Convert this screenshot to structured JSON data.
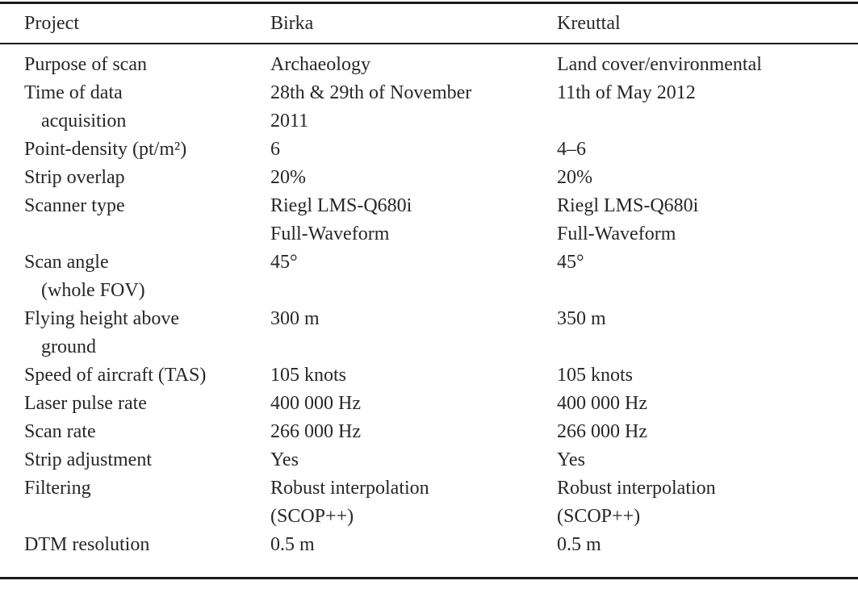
{
  "page": {
    "background": "#ffffff",
    "text_color": "#272727",
    "rule_color": "#1b1b1b"
  },
  "table": {
    "columns": [
      "Project",
      "Birka",
      "Kreuttal"
    ],
    "rows": [
      {
        "label": [
          "Purpose of scan"
        ],
        "birka": [
          "Archaeology"
        ],
        "kreuttal": [
          "Land cover/environmental"
        ]
      },
      {
        "label": [
          "Time of data",
          "acquisition"
        ],
        "birka": [
          "28th & 29th of November",
          "2011"
        ],
        "kreuttal": [
          "11th of May 2012"
        ]
      },
      {
        "label": [
          "Point-density (pt/m²)"
        ],
        "birka": [
          "6"
        ],
        "kreuttal": [
          "4–6"
        ]
      },
      {
        "label": [
          "Strip overlap"
        ],
        "birka": [
          "20%"
        ],
        "kreuttal": [
          "20%"
        ]
      },
      {
        "label": [
          "Scanner type"
        ],
        "birka": [
          "Riegl LMS-Q680i",
          "Full-Waveform"
        ],
        "kreuttal": [
          "Riegl LMS-Q680i",
          "Full-Waveform"
        ]
      },
      {
        "label": [
          "Scan angle",
          "(whole FOV)"
        ],
        "birka": [
          "45°"
        ],
        "kreuttal": [
          "45°"
        ]
      },
      {
        "label": [
          "Flying height above",
          "ground"
        ],
        "birka": [
          "300 m"
        ],
        "kreuttal": [
          "350 m"
        ]
      },
      {
        "label": [
          "Speed of aircraft (TAS)"
        ],
        "birka": [
          "105 knots"
        ],
        "kreuttal": [
          "105 knots"
        ]
      },
      {
        "label": [
          "Laser pulse rate"
        ],
        "birka": [
          "400 000 Hz"
        ],
        "kreuttal": [
          "400 000 Hz"
        ]
      },
      {
        "label": [
          "Scan rate"
        ],
        "birka": [
          "266 000 Hz"
        ],
        "kreuttal": [
          "266 000 Hz"
        ]
      },
      {
        "label": [
          "Strip adjustment"
        ],
        "birka": [
          "Yes"
        ],
        "kreuttal": [
          "Yes"
        ]
      },
      {
        "label": [
          "Filtering"
        ],
        "birka": [
          "Robust interpolation",
          "(SCOP++)"
        ],
        "kreuttal": [
          "Robust interpolation",
          "(SCOP++)"
        ]
      },
      {
        "label": [
          "DTM resolution"
        ],
        "birka": [
          "0.5 m"
        ],
        "kreuttal": [
          "0.5 m"
        ]
      }
    ]
  }
}
